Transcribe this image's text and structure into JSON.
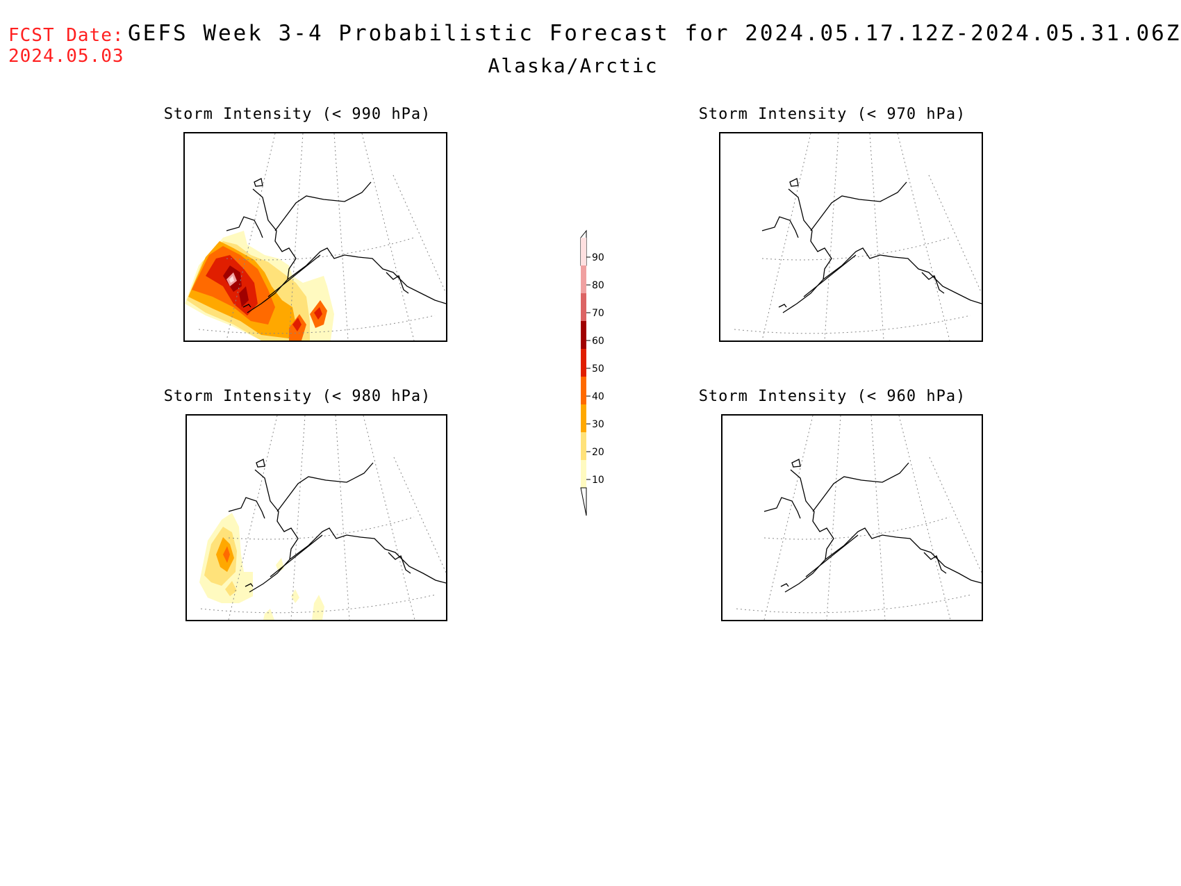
{
  "header": {
    "fcst_label": "FCST Date:",
    "fcst_date": "2024.05.03",
    "title": "GEFS Week 3-4 Probabilistic Forecast for 2024.05.17.12Z-2024.05.31.06Z",
    "subtitle": "Alaska/Arctic"
  },
  "panels": [
    {
      "title": "Storm Intensity (< 990 hPa)",
      "has_data": true
    },
    {
      "title": "Storm Intensity (< 970 hPa)",
      "has_data": false
    },
    {
      "title": "Storm Intensity (< 980 hPa)",
      "has_data": true
    },
    {
      "title": "Storm Intensity (< 960 hPa)",
      "has_data": false
    }
  ],
  "legend": {
    "levels": [
      "10",
      "20",
      "30",
      "40",
      "50",
      "60",
      "70",
      "80",
      "90"
    ],
    "colors": [
      "#fffac0",
      "#ffe27a",
      "#ffa800",
      "#ff6a00",
      "#e01e00",
      "#a00000",
      "#dc6464",
      "#f0a0a0",
      "#ffe0e0"
    ]
  }
}
